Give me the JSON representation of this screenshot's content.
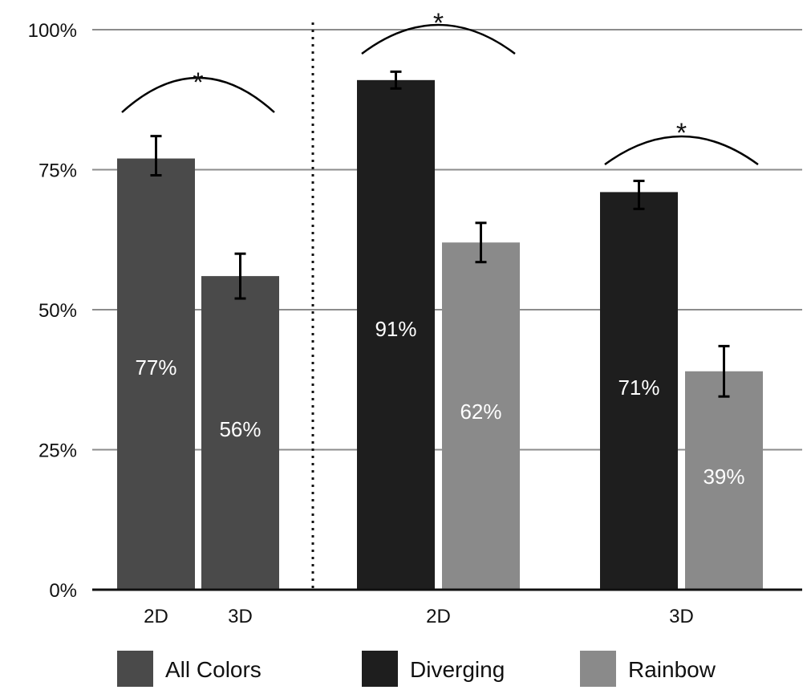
{
  "chart_data": {
    "type": "bar",
    "title": "",
    "xlabel": "",
    "ylabel": "",
    "ylim": [
      0,
      100
    ],
    "y_ticks": [
      "0%",
      "25%",
      "50%",
      "75%",
      "100%"
    ],
    "grid": true,
    "legend_placement": "bottom",
    "series_legend": [
      {
        "name": "All Colors",
        "color": "#4a4a4a"
      },
      {
        "name": "Diverging",
        "color": "#1e1e1e"
      },
      {
        "name": "Rainbow",
        "color": "#8a8a8a"
      }
    ],
    "groups": [
      {
        "bars": [
          {
            "category": "2D",
            "series": "All Colors",
            "value": 77,
            "label": "77%",
            "err_low": 74,
            "err_high": 81
          },
          {
            "category": "3D",
            "series": "All Colors",
            "value": 56,
            "label": "56%",
            "err_low": 52,
            "err_high": 60
          }
        ],
        "significance": "*"
      },
      {
        "category": "2D",
        "bars": [
          {
            "series": "Diverging",
            "value": 91,
            "label": "91%",
            "err_low": 89.5,
            "err_high": 92.5
          },
          {
            "series": "Rainbow",
            "value": 62,
            "label": "62%",
            "err_low": 58.5,
            "err_high": 65.5
          }
        ],
        "significance": "*"
      },
      {
        "category": "3D",
        "bars": [
          {
            "series": "Diverging",
            "value": 71,
            "label": "71%",
            "err_low": 68,
            "err_high": 73
          },
          {
            "series": "Rainbow",
            "value": 39,
            "label": "39%",
            "err_low": 34.5,
            "err_high": 43.5
          }
        ],
        "significance": "*"
      }
    ]
  }
}
